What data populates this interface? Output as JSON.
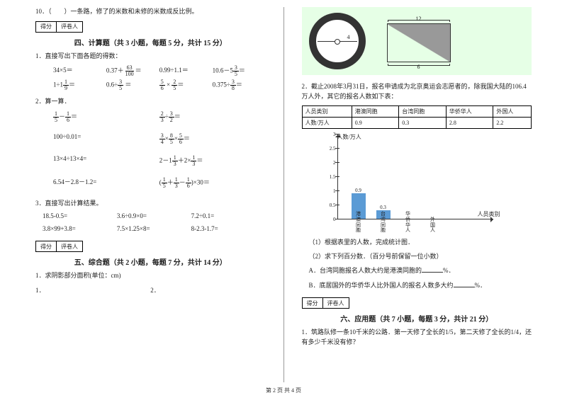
{
  "left": {
    "q10": "10．（　　）一条路，修了的米数和未修的米数成反比例。",
    "score_labels": [
      "得分",
      "评卷人"
    ],
    "sec4_title": "四、计算题（共 3 小题，每题 5 分，共计 15 分）",
    "q1_label": "1．直接写出下面各题的得数：",
    "row1": [
      "34×5＝",
      "0.37＋",
      "＝",
      "0.99÷1.1＝",
      "10.6－5",
      "＝"
    ],
    "frac_r1b": {
      "n": "63",
      "d": "100"
    },
    "frac_r1d": {
      "n": "3",
      "d": "5"
    },
    "row2_a": "1÷1",
    "row2_a_eq": "＝",
    "frac_r2a": {
      "n": "1",
      "d": "9"
    },
    "row2_b": "0.6÷",
    "row2_b_eq": " ＝",
    "frac_r2b": {
      "n": "3",
      "d": "5"
    },
    "frac_r2c1": {
      "n": "5",
      "d": "6"
    },
    "row2_c_mid": " × ",
    "frac_r2c2": {
      "n": "2",
      "d": "5"
    },
    "row2_c_eq": "＝",
    "row2_d": "0.375÷",
    "frac_r2d": {
      "n": "3",
      "d": "8"
    },
    "row2_d_eq": "＝",
    "q2_label": "2．算一算．",
    "p2a1_f1": {
      "n": "1",
      "d": "5"
    },
    "p2a1_mid": "－",
    "p2a1_f2": {
      "n": "1",
      "d": "6"
    },
    "p2a1_eq": "＝",
    "p2a2_f1": {
      "n": "2",
      "d": "3"
    },
    "p2a2_mid": "÷",
    "p2a2_f2": {
      "n": "3",
      "d": "2"
    },
    "p2a2_eq": "＝",
    "p2b1": "100÷0.01=",
    "p2b2_f1": {
      "n": "3",
      "d": "4"
    },
    "p2b2_m1": "×",
    "p2b2_f2": {
      "n": "8",
      "d": "5"
    },
    "p2b2_m2": "×",
    "p2b2_f3": {
      "n": "5",
      "d": "6"
    },
    "p2b2_eq": "＝",
    "p2c1": "13×4÷13×4=",
    "p2c2_a": "2－1",
    "p2c2_f1": {
      "n": "1",
      "d": "3"
    },
    "p2c2_m": "＋2×",
    "p2c2_f2": {
      "n": "1",
      "d": "3"
    },
    "p2c2_eq": "＝",
    "p2d1": "6.54－2.8－1.2=",
    "p2d2_lp": "(",
    "p2d2_f1": {
      "n": "1",
      "d": "5"
    },
    "p2d2_m1": "＋",
    "p2d2_f2": {
      "n": "1",
      "d": "3"
    },
    "p2d2_m2": "－",
    "p2d2_f3": {
      "n": "1",
      "d": "6"
    },
    "p2d2_rp": ")×30＝",
    "q3_label": "3．直接写出计算结果。",
    "r3a": [
      "18.5-0.5=",
      "3.6÷0.9×0=",
      "7.2÷0.1="
    ],
    "r3b": [
      "3.8×99+3.8=",
      "7.5×1.25×8=",
      "8-2.3-1.7="
    ],
    "sec5_title": "五、综合题（共 2 小题，每题 7 分，共计 14 分）",
    "q5_1": "1．求阴影部分面积(单位：cm)",
    "sub12": [
      "1．",
      "2．"
    ]
  },
  "right": {
    "circle_label": "4",
    "rect_top": "12",
    "rect_bot": "6",
    "q2_text": "2．截止2008年3月31日，报名申请成为北京奥运会志愿者的，除我国大陆的106.4万人外，其它的报名人数如下表：",
    "table_headers": [
      "人员类别",
      "港澳同胞",
      "台湾同胞",
      "华侨华人",
      "外国人"
    ],
    "table_row_label": "人数/万人",
    "table_values": [
      "0.9",
      "0.3",
      "2.8",
      "2.2"
    ],
    "chart_ylabel": "人数/万人",
    "chart_xlabel": "人员类别",
    "yticks": [
      "3",
      "2.5",
      "2",
      "1.5",
      "1",
      "0.5",
      "0"
    ],
    "bars": [
      {
        "label": "0.9",
        "height": 36,
        "x": 40,
        "cat": "港澳同胞"
      },
      {
        "label": "0.3",
        "height": 12,
        "x": 75,
        "cat": "台湾同胞"
      },
      {
        "label": "",
        "height": 0,
        "x": 110,
        "cat": "华侨华人"
      },
      {
        "label": "",
        "height": 0,
        "x": 145,
        "cat": "外国人"
      }
    ],
    "sub1": "（1）根据表里的人数，完成统计图．",
    "sub2": "（2）求下列百分数．（百分号前保留一位小数）",
    "subA": "A．台湾同胞报名人数大约是港澳同胞的",
    "subA_end": "%．",
    "subB": "B．底居国外的华侨华人比外国人的报名人数多大约",
    "subB_end": "%．",
    "score_labels": [
      "得分",
      "评卷人"
    ],
    "sec6_title": "六、应用题（共 7 小题，每题 3 分，共计 21 分）",
    "q6_1": "1．筑路队修一条10千米的公路．第一天修了全长的1/5，第二天修了全长的1/4，还有多少千米没有修？"
  },
  "footer": "第 2 页 共 4 页"
}
